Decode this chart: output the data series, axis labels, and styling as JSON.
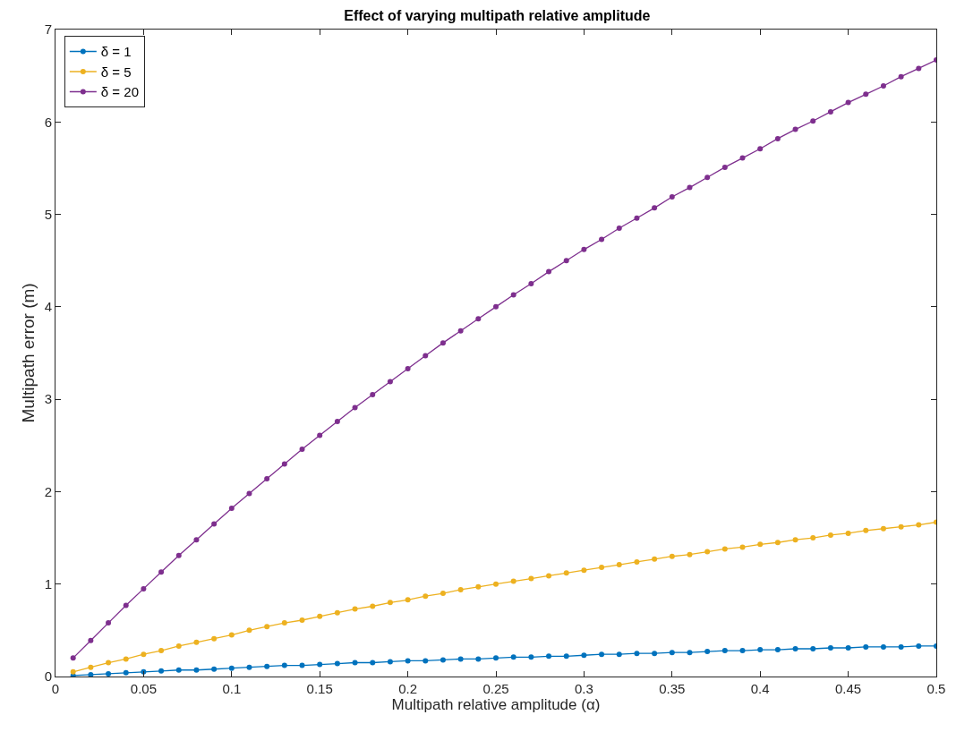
{
  "chart_data": {
    "type": "line",
    "title": "Effect of varying multipath relative amplitude",
    "xlabel": "Multipath relative amplitude (α)",
    "ylabel": "Multipath error (m)",
    "x": [
      0.01,
      0.02,
      0.03,
      0.04,
      0.05,
      0.06,
      0.07,
      0.08,
      0.09,
      0.1,
      0.11,
      0.12,
      0.13,
      0.14,
      0.15,
      0.16,
      0.17,
      0.18,
      0.19,
      0.2,
      0.21,
      0.22,
      0.23,
      0.24,
      0.25,
      0.26,
      0.27,
      0.28,
      0.29,
      0.3,
      0.31,
      0.32,
      0.33,
      0.34,
      0.35,
      0.36,
      0.37,
      0.38,
      0.39,
      0.4,
      0.41,
      0.42,
      0.43,
      0.44,
      0.45,
      0.46,
      0.47,
      0.48,
      0.49,
      0.5
    ],
    "series": [
      {
        "name": "δ = 1",
        "color": "#0072bd",
        "values": [
          0.01,
          0.02,
          0.03,
          0.04,
          0.05,
          0.06,
          0.07,
          0.07,
          0.08,
          0.09,
          0.1,
          0.11,
          0.12,
          0.12,
          0.13,
          0.14,
          0.15,
          0.15,
          0.16,
          0.17,
          0.17,
          0.18,
          0.19,
          0.19,
          0.2,
          0.21,
          0.21,
          0.22,
          0.22,
          0.23,
          0.24,
          0.24,
          0.25,
          0.25,
          0.26,
          0.26,
          0.27,
          0.28,
          0.28,
          0.29,
          0.29,
          0.3,
          0.3,
          0.31,
          0.31,
          0.32,
          0.32,
          0.32,
          0.33,
          0.33
        ]
      },
      {
        "name": "δ = 5",
        "color": "#edb120",
        "values": [
          0.05,
          0.1,
          0.15,
          0.19,
          0.24,
          0.28,
          0.33,
          0.37,
          0.41,
          0.45,
          0.5,
          0.54,
          0.58,
          0.61,
          0.65,
          0.69,
          0.73,
          0.76,
          0.8,
          0.83,
          0.87,
          0.9,
          0.94,
          0.97,
          1.0,
          1.03,
          1.06,
          1.09,
          1.12,
          1.15,
          1.18,
          1.21,
          1.24,
          1.27,
          1.3,
          1.32,
          1.35,
          1.38,
          1.4,
          1.43,
          1.45,
          1.48,
          1.5,
          1.53,
          1.55,
          1.58,
          1.6,
          1.62,
          1.64,
          1.67
        ]
      },
      {
        "name": "δ = 20",
        "color": "#7e2f8e",
        "values": [
          0.2,
          0.39,
          0.58,
          0.77,
          0.95,
          1.13,
          1.31,
          1.48,
          1.65,
          1.82,
          1.98,
          2.14,
          2.3,
          2.46,
          2.61,
          2.76,
          2.91,
          3.05,
          3.19,
          3.33,
          3.47,
          3.61,
          3.74,
          3.87,
          4.0,
          4.13,
          4.25,
          4.38,
          4.5,
          4.62,
          4.73,
          4.85,
          4.96,
          5.07,
          5.19,
          5.29,
          5.4,
          5.51,
          5.61,
          5.71,
          5.82,
          5.92,
          6.01,
          6.11,
          6.21,
          6.3,
          6.39,
          6.49,
          6.58,
          6.67
        ]
      }
    ],
    "xlim": [
      0,
      0.5
    ],
    "xticks": [
      0,
      0.05,
      0.1,
      0.15,
      0.2,
      0.25,
      0.3,
      0.35,
      0.4,
      0.45,
      0.5
    ],
    "ylim": [
      0,
      7
    ],
    "yticks": [
      0,
      1,
      2,
      3,
      4,
      5,
      6,
      7
    ],
    "legend": "top left",
    "marker": "circle",
    "line_style": "solid"
  }
}
